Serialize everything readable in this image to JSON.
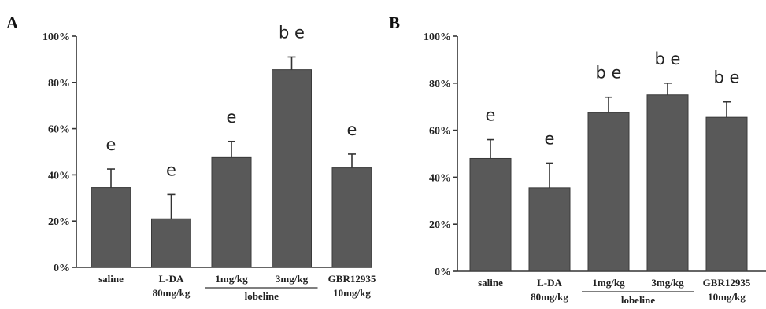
{
  "chart_data": [
    {
      "type": "bar",
      "panel_label": "A",
      "categories": [
        {
          "lines": [
            "saline"
          ]
        },
        {
          "lines": [
            "L-DA",
            "80mg/kg"
          ]
        },
        {
          "lines": [
            "1mg/kg"
          ]
        },
        {
          "lines": [
            "3mg/kg"
          ]
        },
        {
          "lines": [
            "GBR12935",
            "10mg/kg"
          ]
        }
      ],
      "values": [
        0.345,
        0.21,
        0.475,
        0.855,
        0.43
      ],
      "errors": [
        0.08,
        0.105,
        0.07,
        0.055,
        0.06
      ],
      "annotations": [
        "e",
        "e",
        "e",
        "b e",
        "e"
      ],
      "group_label": {
        "text": "lobeline",
        "from": 2,
        "to": 3
      },
      "ylim": [
        0,
        1.0
      ],
      "yticks": [
        "0%",
        "20%",
        "40%",
        "60%",
        "80%",
        "100%"
      ],
      "grid": false,
      "bar_color": "#595959"
    },
    {
      "type": "bar",
      "panel_label": "B",
      "categories": [
        {
          "lines": [
            "saline"
          ]
        },
        {
          "lines": [
            "L-DA",
            "80mg/kg"
          ]
        },
        {
          "lines": [
            "1mg/kg"
          ]
        },
        {
          "lines": [
            "3mg/kg"
          ]
        },
        {
          "lines": [
            "GBR12935",
            "10mg/kg"
          ]
        }
      ],
      "values": [
        0.48,
        0.355,
        0.675,
        0.75,
        0.655
      ],
      "errors": [
        0.08,
        0.105,
        0.065,
        0.05,
        0.065
      ],
      "annotations": [
        "e",
        "e",
        "b e",
        "b e",
        "b e"
      ],
      "group_label": {
        "text": "lobeline",
        "from": 2,
        "to": 3
      },
      "ylim": [
        0,
        1.0
      ],
      "yticks": [
        "0%",
        "20%",
        "40%",
        "60%",
        "80%",
        "100%"
      ],
      "grid": false,
      "bar_color": "#595959"
    }
  ]
}
